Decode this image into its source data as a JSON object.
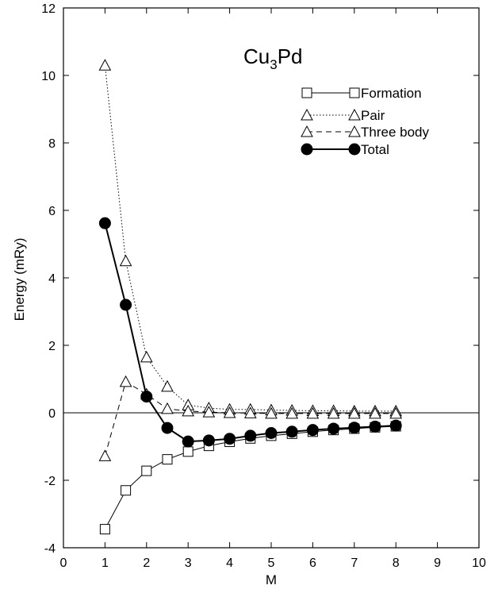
{
  "chart_data": {
    "type": "line",
    "title": "",
    "xlabel": "M",
    "ylabel": "Energy (mRy)",
    "xlim": [
      0,
      10
    ],
    "ylim": [
      -4,
      12
    ],
    "xticks": [
      0,
      1,
      2,
      3,
      4,
      5,
      6,
      7,
      8,
      9,
      10
    ],
    "yticks": [
      -4,
      -2,
      0,
      2,
      4,
      6,
      8,
      10,
      12
    ],
    "grid": false,
    "zero_line": true,
    "legend_position": "top-right",
    "annotation": {
      "main": "Cu",
      "sub": "3",
      "tail": "Pd"
    },
    "x": [
      1,
      1.5,
      2,
      2.5,
      3,
      3.5,
      4,
      4.5,
      5,
      5.5,
      6,
      6.5,
      7,
      7.5,
      8
    ],
    "series": [
      {
        "name": "Formation",
        "marker": "open-square",
        "line": "solid-thin",
        "values": [
          -3.45,
          -2.3,
          -1.72,
          -1.38,
          -1.15,
          -0.98,
          -0.86,
          -0.76,
          -0.68,
          -0.62,
          -0.56,
          -0.51,
          -0.47,
          -0.43,
          -0.4
        ]
      },
      {
        "name": "Pair",
        "marker": "open-triangle",
        "line": "dotted",
        "values": [
          10.3,
          4.5,
          1.65,
          0.78,
          0.23,
          0.14,
          0.1,
          0.1,
          0.08,
          0.07,
          0.06,
          0.06,
          0.05,
          0.05,
          0.05
        ]
      },
      {
        "name": "Three body",
        "marker": "open-triangle",
        "line": "dashed",
        "values": [
          -1.28,
          0.92,
          0.55,
          0.12,
          0.05,
          0.02,
          0.0,
          -0.01,
          -0.02,
          -0.02,
          -0.02,
          -0.02,
          -0.02,
          -0.02,
          -0.02
        ]
      },
      {
        "name": "Total",
        "marker": "filled-circle",
        "line": "solid-thick",
        "values": [
          5.62,
          3.2,
          0.48,
          -0.45,
          -0.85,
          -0.82,
          -0.77,
          -0.68,
          -0.6,
          -0.56,
          -0.51,
          -0.47,
          -0.44,
          -0.41,
          -0.38
        ]
      }
    ]
  }
}
